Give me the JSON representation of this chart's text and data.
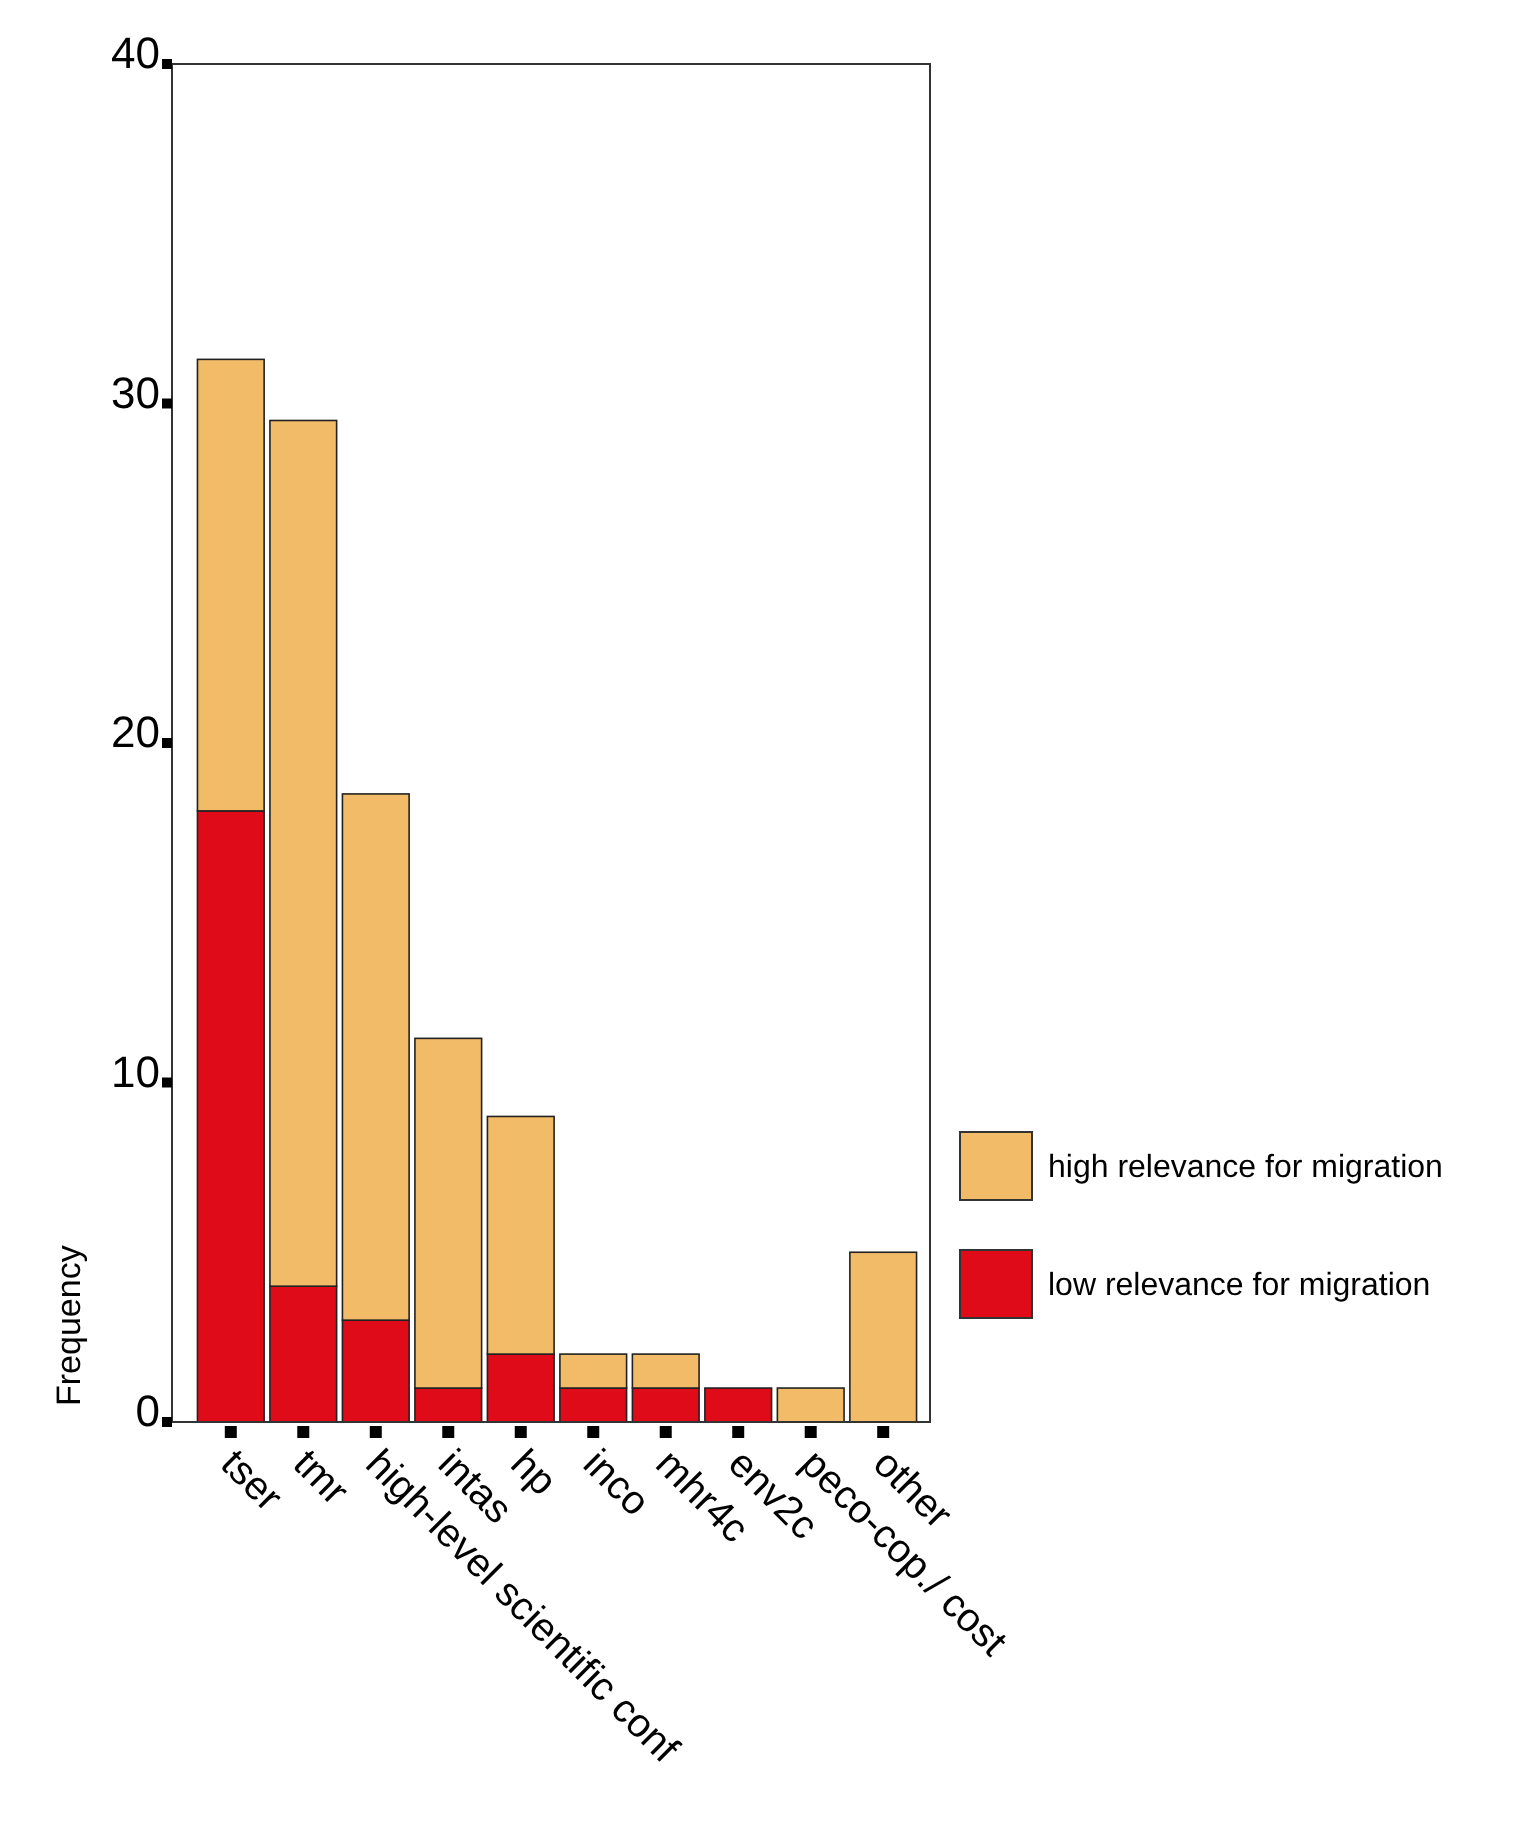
{
  "chart_data": {
    "type": "bar",
    "stacked": true,
    "ylabel": "Frequency",
    "categories": [
      "tser",
      "tmr",
      "high-level scientific conf",
      "intas",
      "hp",
      "inco",
      "mhr4c",
      "env2c",
      "peco-cop./ cost",
      "other"
    ],
    "series": [
      {
        "name": "low  relevance  for migration",
        "color": "#e00b18",
        "values": [
          18,
          4,
          3,
          1,
          2,
          1,
          1,
          1,
          0,
          0
        ]
      },
      {
        "name": "high relevance  for migration",
        "color": "#f2bb67",
        "values": [
          13.3,
          25.5,
          15.5,
          10.3,
          7,
          1,
          1,
          0,
          1,
          5
        ]
      }
    ],
    "ylim": [
      0,
      40
    ],
    "yticks": [
      0,
      10,
      20,
      30,
      40
    ],
    "grid": false,
    "legend": "right"
  }
}
